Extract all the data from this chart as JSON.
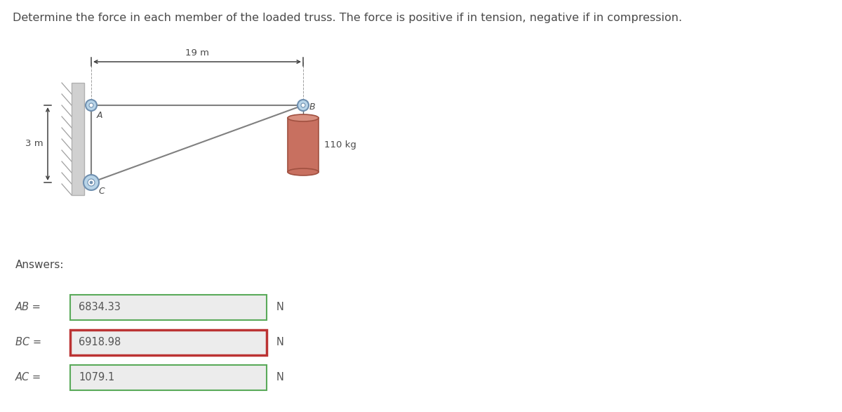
{
  "title": "Determine the force in each member of the loaded truss. The force is positive if in tension, negative if in compression.",
  "title_color": "#4a4a4a",
  "title_fontsize": 11.5,
  "bg_color": "#ffffff",
  "dim_19m_label": "19 m",
  "dim_3m_label": "3 m",
  "load_label": "110 kg",
  "node_A_label": "A",
  "node_B_label": "B",
  "node_C_label": "C",
  "answers_label": "Answers:",
  "ab_label": "AB =",
  "bc_label": "BC =",
  "ac_label": "AC =",
  "ab_value": "6834.33",
  "bc_value": "6918.98",
  "ac_value": "1079.1",
  "unit_label": "N",
  "ab_box_facecolor": "#ececec",
  "ab_border_color": "#5aaa5a",
  "bc_box_facecolor": "#ececec",
  "bc_border_color": "#bb3333",
  "ac_box_facecolor": "#ececec",
  "ac_border_color": "#5aaa5a",
  "wall_color": "#d0d0d0",
  "wall_edge_color": "#b0b0b0",
  "truss_line_color": "#808080",
  "node_fill_color": "#b8d4e8",
  "node_edge_color": "#7090b0",
  "load_body_color": "#c87060",
  "load_top_color": "#d89080",
  "load_edge_color": "#a05040",
  "rope_color": "#606060",
  "arrow_color": "#404040",
  "text_color": "#4a4a4a",
  "label_color": "#555555"
}
